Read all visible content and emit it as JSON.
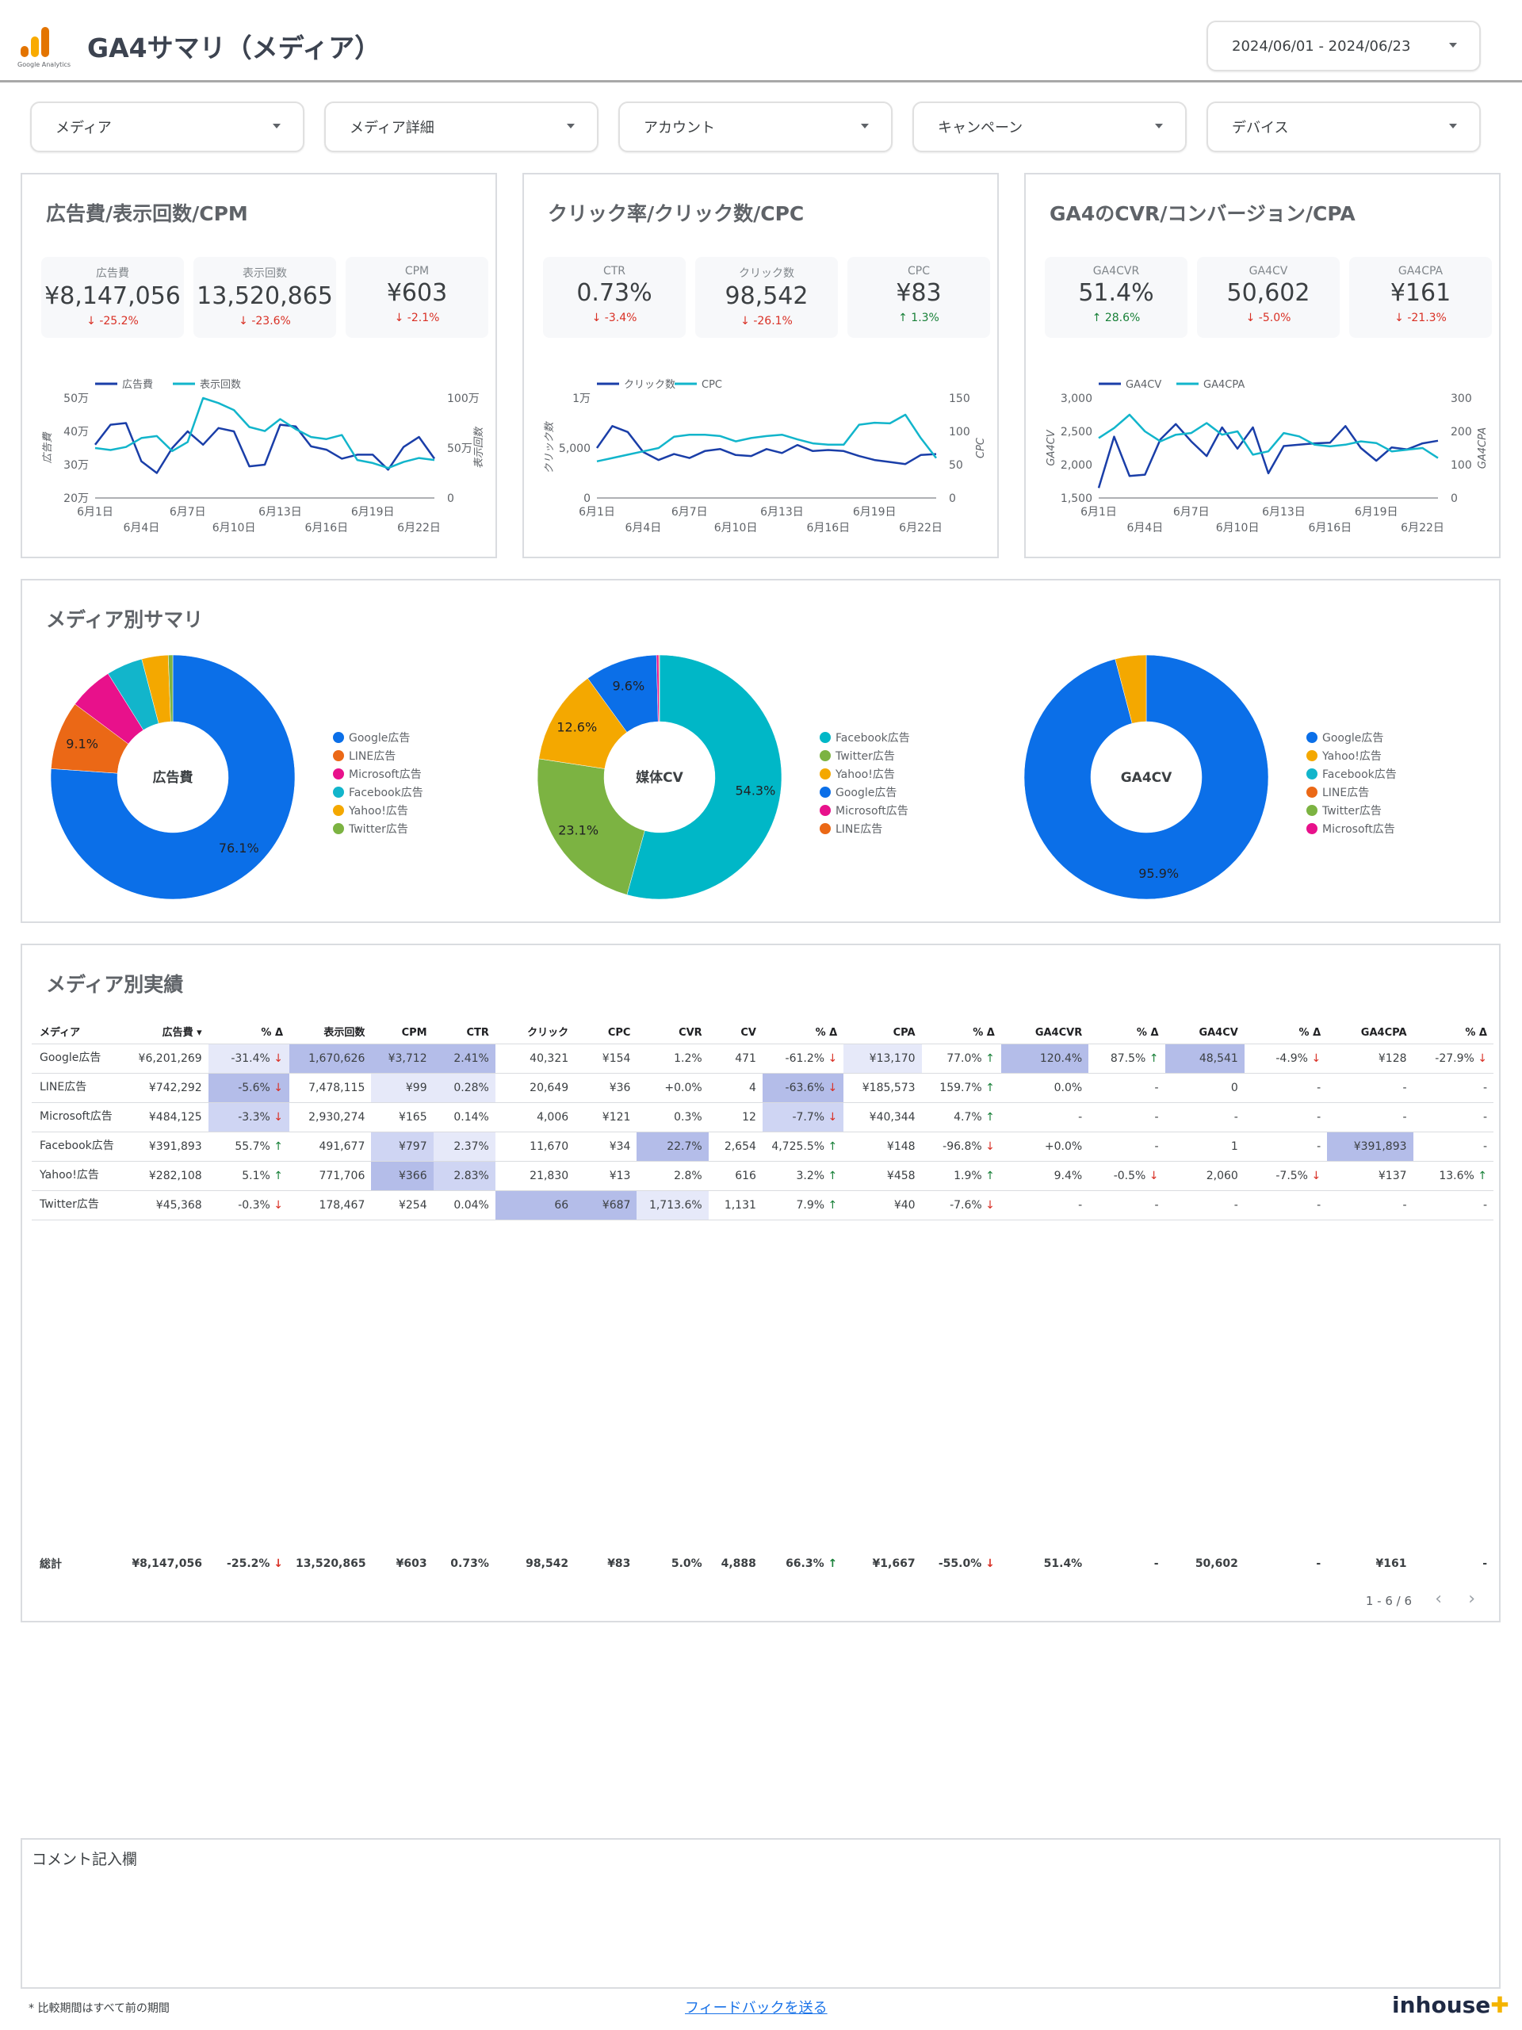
{
  "header": {
    "logo_text": "Google Analytics",
    "title": "GA4サマリ（メディア）",
    "date_range": "2024/06/01 - 2024/06/23"
  },
  "filters": [
    "メディア",
    "メディア詳細",
    "アカウント",
    "キャンペーン",
    "デバイス"
  ],
  "panels": [
    {
      "title": "広告費/表示回数/CPM",
      "kpis": [
        {
          "label": "広告費",
          "value": "¥8,147,056",
          "delta": "-25.2%",
          "dir": "down"
        },
        {
          "label": "表示回数",
          "value": "13,520,865",
          "delta": "-23.6%",
          "dir": "down"
        },
        {
          "label": "CPM",
          "value": "¥603",
          "delta": "-2.1%",
          "dir": "down"
        }
      ],
      "legend": [
        "広告費",
        "表示回数"
      ],
      "left_axis_title": "広告費",
      "right_axis_title": "表示回数",
      "left_ticks": [
        "50万",
        "40万",
        "30万",
        "20万"
      ],
      "right_ticks": [
        "100万",
        "50万",
        "0"
      ]
    },
    {
      "title": "クリック率/クリック数/CPC",
      "kpis": [
        {
          "label": "CTR",
          "value": "0.73%",
          "delta": "-3.4%",
          "dir": "down"
        },
        {
          "label": "クリック数",
          "value": "98,542",
          "delta": "-26.1%",
          "dir": "down"
        },
        {
          "label": "CPC",
          "value": "¥83",
          "delta": "1.3%",
          "dir": "up"
        }
      ],
      "legend": [
        "クリック数",
        "CPC"
      ],
      "left_axis_title": "クリック数",
      "right_axis_title": "CPC",
      "left_ticks": [
        "1万",
        "5,000",
        "0"
      ],
      "right_ticks": [
        "150",
        "100",
        "50",
        "0"
      ]
    },
    {
      "title": "GA4のCVR/コンバージョン/CPA",
      "kpis": [
        {
          "label": "GA4CVR",
          "value": "51.4%",
          "delta": "28.6%",
          "dir": "up"
        },
        {
          "label": "GA4CV",
          "value": "50,602",
          "delta": "-5.0%",
          "dir": "down"
        },
        {
          "label": "GA4CPA",
          "value": "¥161",
          "delta": "-21.3%",
          "dir": "down"
        }
      ],
      "legend": [
        "GA4CV",
        "GA4CPA"
      ],
      "left_axis_title": "GA4CV",
      "right_axis_title": "GA4CPA",
      "left_ticks": [
        "3,000",
        "2,500",
        "2,000",
        "1,500"
      ],
      "right_ticks": [
        "300",
        "200",
        "100",
        "0"
      ]
    }
  ],
  "x_ticks_top": [
    "6月1日",
    "6月7日",
    "6月13日",
    "6月19日"
  ],
  "x_ticks_bottom": [
    "6月4日",
    "6月10日",
    "6月16日",
    "6月22日"
  ],
  "chart_data": [
    {
      "type": "line",
      "series": [
        {
          "name": "広告費",
          "axis": "left",
          "color": "#1a3ea8",
          "values": [
            360000,
            420000,
            425000,
            310000,
            275000,
            350000,
            400000,
            360000,
            410000,
            400000,
            295000,
            300000,
            420000,
            415000,
            355000,
            345000,
            318000,
            330000,
            330000,
            285000,
            353000,
            383000,
            318000
          ]
        },
        {
          "name": "表示回数",
          "axis": "right",
          "color": "#12b5cb",
          "values": [
            500000,
            480000,
            510000,
            600000,
            620000,
            470000,
            560000,
            1000000,
            950000,
            880000,
            710000,
            670000,
            790000,
            690000,
            610000,
            590000,
            630000,
            380000,
            350000,
            300000,
            360000,
            400000,
            380000
          ]
        }
      ],
      "ylim_left": [
        200000,
        500000
      ],
      "ylim_right": [
        0,
        1000000
      ]
    },
    {
      "type": "line",
      "series": [
        {
          "name": "クリック数",
          "axis": "left",
          "color": "#1a3ea8",
          "values": [
            5000,
            7200,
            6600,
            4600,
            3800,
            4400,
            4000,
            4700,
            4900,
            4300,
            4200,
            4900,
            4500,
            5300,
            4700,
            4800,
            4700,
            4200,
            3800,
            3600,
            3400,
            4300,
            4400
          ]
        },
        {
          "name": "CPC",
          "axis": "right",
          "color": "#12b5cb",
          "values": [
            55,
            60,
            65,
            70,
            75,
            92,
            95,
            95,
            93,
            85,
            90,
            93,
            95,
            88,
            82,
            80,
            80,
            110,
            113,
            112,
            125,
            90,
            60
          ]
        }
      ],
      "ylim_left": [
        0,
        10000
      ],
      "ylim_right": [
        0,
        150
      ]
    },
    {
      "type": "line",
      "series": [
        {
          "name": "GA4CV",
          "axis": "left",
          "color": "#1a3ea8",
          "values": [
            1650,
            2420,
            1830,
            1850,
            2380,
            2610,
            2350,
            2130,
            2560,
            2240,
            2560,
            1870,
            2280,
            2300,
            2320,
            2330,
            2580,
            2250,
            2060,
            2260,
            2230,
            2320,
            2360
          ]
        },
        {
          "name": "GA4CPA",
          "axis": "right",
          "color": "#12b5cb",
          "values": [
            180,
            210,
            250,
            200,
            170,
            190,
            195,
            225,
            190,
            200,
            130,
            140,
            195,
            185,
            160,
            155,
            160,
            170,
            165,
            140,
            145,
            150,
            120
          ]
        }
      ],
      "ylim_left": [
        1500,
        3000
      ],
      "ylim_right": [
        0,
        300
      ]
    },
    {
      "type": "pie",
      "center_label": "広告費",
      "labels": [
        "Google広告",
        "LINE広告",
        "Microsoft広告",
        "Facebook広告",
        "Yahoo!広告",
        "Twitter広告"
      ],
      "values": [
        76.1,
        9.1,
        5.9,
        4.8,
        3.5,
        0.6
      ],
      "colors": [
        "#0b6fe8",
        "#eb6816",
        "#e8118b",
        "#12b5cb",
        "#f4a800",
        "#7cb342"
      ],
      "slice_labels": [
        "76.1%",
        "9.1%",
        "",
        "",
        "",
        ""
      ]
    },
    {
      "type": "pie",
      "center_label": "媒体CV",
      "labels": [
        "Facebook広告",
        "Twitter広告",
        "Yahoo!広告",
        "Google広告",
        "Microsoft広告",
        "LINE広告"
      ],
      "values": [
        54.3,
        23.1,
        12.6,
        9.6,
        0.3,
        0.1
      ],
      "colors": [
        "#00b7c7",
        "#7cb342",
        "#f4a800",
        "#0b6fe8",
        "#e8118b",
        "#eb6816"
      ],
      "slice_labels": [
        "54.3%",
        "23.1%",
        "12.6%",
        "9.6%",
        "",
        ""
      ]
    },
    {
      "type": "pie",
      "center_label": "GA4CV",
      "labels": [
        "Google広告",
        "Yahoo!広告",
        "Facebook広告",
        "LINE広告",
        "Twitter広告",
        "Microsoft広告"
      ],
      "values": [
        95.9,
        4.1,
        0.0,
        0.0,
        0.0,
        0.0
      ],
      "colors": [
        "#0b6fe8",
        "#f4a800",
        "#12b5cb",
        "#eb6816",
        "#7cb342",
        "#e8118b"
      ],
      "slice_labels": [
        "95.9%",
        "",
        "",
        "",
        "",
        ""
      ]
    }
  ],
  "media_summary": {
    "title": "メディア別サマリ"
  },
  "performance": {
    "title": "メディア別実績",
    "columns": [
      "メディア",
      "広告費 ▾",
      "% Δ",
      "表示回数",
      "CPM",
      "CTR",
      "クリック",
      "CPC",
      "CVR",
      "CV",
      "% Δ",
      "CPA",
      "% Δ",
      "GA4CVR",
      "% Δ",
      "GA4CV",
      "% Δ",
      "GA4CPA",
      "% Δ"
    ],
    "rows": [
      [
        "Google広告",
        "¥6,201,269",
        "-31.4% ↓",
        "1,670,626",
        "¥3,712",
        "2.41%",
        "40,321",
        "¥154",
        "1.2%",
        "471",
        "-61.2% ↓",
        "¥13,170",
        "77.0% ↑",
        "120.4%",
        "87.5% ↑",
        "48,541",
        "-4.9% ↓",
        "¥128",
        "-27.9% ↓"
      ],
      [
        "LINE広告",
        "¥742,292",
        "-5.6% ↓",
        "7,478,115",
        "¥99",
        "0.28%",
        "20,649",
        "¥36",
        "+0.0%",
        "4",
        "-63.6% ↓",
        "¥185,573",
        "159.7% ↑",
        "0.0%",
        "-",
        "0",
        "-",
        "-",
        "-"
      ],
      [
        "Microsoft広告",
        "¥484,125",
        "-3.3% ↓",
        "2,930,274",
        "¥165",
        "0.14%",
        "4,006",
        "¥121",
        "0.3%",
        "12",
        "-7.7% ↓",
        "¥40,344",
        "4.7% ↑",
        "-",
        "-",
        "-",
        "-",
        "-",
        "-"
      ],
      [
        "Facebook広告",
        "¥391,893",
        "55.7% ↑",
        "491,677",
        "¥797",
        "2.37%",
        "11,670",
        "¥34",
        "22.7%",
        "2,654",
        "4,725.5% ↑",
        "¥148",
        "-96.8% ↓",
        "+0.0%",
        "-",
        "1",
        "-",
        "¥391,893",
        "-"
      ],
      [
        "Yahoo!広告",
        "¥282,108",
        "5.1% ↑",
        "771,706",
        "¥366",
        "2.83%",
        "21,830",
        "¥13",
        "2.8%",
        "616",
        "3.2% ↑",
        "¥458",
        "1.9% ↑",
        "9.4%",
        "-0.5% ↓",
        "2,060",
        "-7.5% ↓",
        "¥137",
        "13.6% ↑"
      ],
      [
        "Twitter広告",
        "¥45,368",
        "-0.3% ↓",
        "178,467",
        "¥254",
        "0.04%",
        "66",
        "¥687",
        "1,713.6%",
        "1,131",
        "7.9% ↑",
        "¥40",
        "-7.6% ↓",
        "-",
        "-",
        "-",
        "-",
        "-",
        "-"
      ]
    ],
    "heat": [
      [
        3,
        0,
        1,
        3,
        3,
        3,
        0,
        0,
        0,
        0,
        0,
        1,
        0,
        3,
        0,
        3,
        0,
        0,
        0
      ],
      [
        1,
        0,
        3,
        0,
        1,
        1,
        0,
        0,
        0,
        0,
        3,
        0,
        0,
        0,
        0,
        0,
        0,
        0,
        0
      ],
      [
        1,
        0,
        2,
        0,
        0,
        0,
        0,
        0,
        0,
        0,
        2,
        0,
        0,
        0,
        0,
        0,
        0,
        0,
        0
      ],
      [
        0,
        0,
        0,
        0,
        2,
        1,
        0,
        0,
        3,
        0,
        0,
        0,
        0,
        0,
        0,
        0,
        0,
        3,
        0
      ],
      [
        0,
        0,
        0,
        0,
        3,
        2,
        0,
        0,
        0,
        0,
        0,
        0,
        0,
        0,
        0,
        0,
        0,
        0,
        0
      ],
      [
        0,
        0,
        0,
        0,
        0,
        0,
        3,
        3,
        1,
        0,
        0,
        0,
        0,
        0,
        0,
        0,
        0,
        0,
        0
      ]
    ],
    "total": [
      "総計",
      "¥8,147,056",
      "-25.2% ↓",
      "13,520,865",
      "¥603",
      "0.73%",
      "98,542",
      "¥83",
      "5.0%",
      "4,888",
      "66.3% ↑",
      "¥1,667",
      "-55.0% ↓",
      "51.4%",
      "-",
      "50,602",
      "-",
      "¥161",
      "-"
    ],
    "pagination": "1 - 6 / 6"
  },
  "comment": {
    "label": "コメント記入欄"
  },
  "footer": {
    "note": "* 比較期間はすべて前の期間",
    "feedback_link": "フィードバックを送る",
    "brand": "inhouse"
  }
}
